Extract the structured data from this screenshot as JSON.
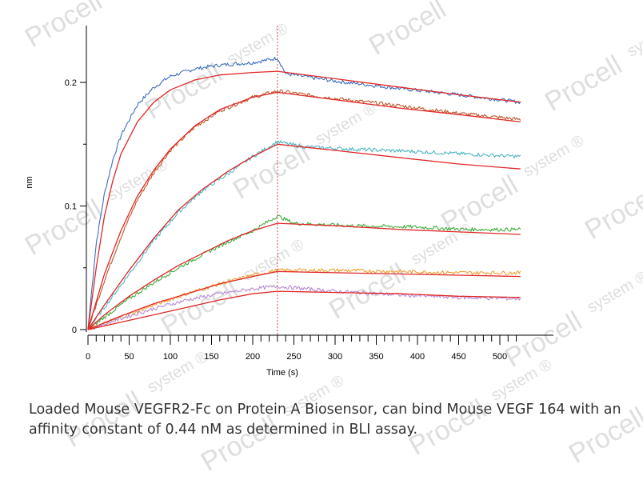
{
  "chart_data": {
    "type": "line",
    "title": "",
    "xlabel": "Time (s)",
    "ylabel": "nm",
    "xlim": [
      0,
      530
    ],
    "ylim": [
      -0.005,
      0.245
    ],
    "x_ticks": [
      0,
      50,
      100,
      150,
      200,
      250,
      300,
      350,
      400,
      450,
      500
    ],
    "y_ticks": [
      0,
      0.1,
      0.2
    ],
    "y_tick_labels": [
      "0",
      "0.1",
      "0.2"
    ],
    "grid": false,
    "dissociation_start_s": 230,
    "series": [
      {
        "role": "measured",
        "color": "#3b6fbf",
        "points": [
          [
            0,
            0
          ],
          [
            10,
            0.07
          ],
          [
            20,
            0.11
          ],
          [
            30,
            0.137
          ],
          [
            40,
            0.157
          ],
          [
            60,
            0.182
          ],
          [
            80,
            0.196
          ],
          [
            100,
            0.205
          ],
          [
            130,
            0.211
          ],
          [
            160,
            0.214
          ],
          [
            200,
            0.216
          ],
          [
            225,
            0.219
          ],
          [
            230,
            0.22
          ],
          [
            240,
            0.207
          ],
          [
            300,
            0.201
          ],
          [
            380,
            0.195
          ],
          [
            450,
            0.19
          ],
          [
            525,
            0.184
          ]
        ]
      },
      {
        "role": "measured",
        "color": "#c0562a",
        "points": [
          [
            0,
            0
          ],
          [
            20,
            0.04
          ],
          [
            40,
            0.075
          ],
          [
            60,
            0.105
          ],
          [
            80,
            0.127
          ],
          [
            100,
            0.145
          ],
          [
            130,
            0.164
          ],
          [
            160,
            0.177
          ],
          [
            200,
            0.188
          ],
          [
            230,
            0.193
          ],
          [
            300,
            0.187
          ],
          [
            380,
            0.181
          ],
          [
            450,
            0.175
          ],
          [
            525,
            0.17
          ]
        ]
      },
      {
        "role": "measured",
        "color": "#4eb6c4",
        "points": [
          [
            0,
            0
          ],
          [
            20,
            0.018
          ],
          [
            50,
            0.045
          ],
          [
            80,
            0.072
          ],
          [
            110,
            0.095
          ],
          [
            140,
            0.113
          ],
          [
            170,
            0.126
          ],
          [
            200,
            0.14
          ],
          [
            230,
            0.152
          ],
          [
            260,
            0.148
          ],
          [
            320,
            0.146
          ],
          [
            400,
            0.144
          ],
          [
            460,
            0.142
          ],
          [
            525,
            0.14
          ]
        ]
      },
      {
        "role": "measured",
        "color": "#3fae3f",
        "points": [
          [
            0,
            0
          ],
          [
            20,
            0.01
          ],
          [
            50,
            0.025
          ],
          [
            80,
            0.038
          ],
          [
            110,
            0.05
          ],
          [
            140,
            0.061
          ],
          [
            170,
            0.071
          ],
          [
            200,
            0.08
          ],
          [
            230,
            0.092
          ],
          [
            250,
            0.086
          ],
          [
            320,
            0.084
          ],
          [
            400,
            0.083
          ],
          [
            460,
            0.081
          ],
          [
            525,
            0.081
          ]
        ]
      },
      {
        "role": "measured",
        "color": "#f0a030",
        "points": [
          [
            0,
            0
          ],
          [
            40,
            0.01
          ],
          [
            80,
            0.02
          ],
          [
            120,
            0.029
          ],
          [
            160,
            0.037
          ],
          [
            200,
            0.044
          ],
          [
            230,
            0.048
          ],
          [
            300,
            0.048
          ],
          [
            380,
            0.047
          ],
          [
            450,
            0.046
          ],
          [
            525,
            0.046
          ]
        ]
      },
      {
        "role": "measured",
        "color": "#b58ad6",
        "points": [
          [
            0,
            0
          ],
          [
            40,
            0.009
          ],
          [
            80,
            0.017
          ],
          [
            120,
            0.024
          ],
          [
            160,
            0.029
          ],
          [
            200,
            0.033
          ],
          [
            230,
            0.035
          ],
          [
            300,
            0.031
          ],
          [
            380,
            0.028
          ],
          [
            450,
            0.026
          ],
          [
            525,
            0.025
          ]
        ]
      },
      {
        "role": "fit",
        "color": "#e02828",
        "points": [
          [
            0,
            0
          ],
          [
            10,
            0.05
          ],
          [
            20,
            0.092
          ],
          [
            30,
            0.12
          ],
          [
            40,
            0.142
          ],
          [
            60,
            0.168
          ],
          [
            80,
            0.184
          ],
          [
            100,
            0.194
          ],
          [
            130,
            0.202
          ],
          [
            160,
            0.206
          ],
          [
            200,
            0.208
          ],
          [
            230,
            0.209
          ],
          [
            300,
            0.203
          ],
          [
            380,
            0.196
          ],
          [
            450,
            0.19
          ],
          [
            525,
            0.184
          ]
        ]
      },
      {
        "role": "fit",
        "color": "#e02828",
        "points": [
          [
            0,
            0
          ],
          [
            20,
            0.045
          ],
          [
            40,
            0.08
          ],
          [
            60,
            0.108
          ],
          [
            80,
            0.129
          ],
          [
            100,
            0.146
          ],
          [
            130,
            0.165
          ],
          [
            160,
            0.178
          ],
          [
            200,
            0.188
          ],
          [
            230,
            0.192
          ],
          [
            300,
            0.186
          ],
          [
            380,
            0.179
          ],
          [
            450,
            0.174
          ],
          [
            525,
            0.168
          ]
        ]
      },
      {
        "role": "fit",
        "color": "#e02828",
        "points": [
          [
            0,
            0
          ],
          [
            20,
            0.02
          ],
          [
            50,
            0.048
          ],
          [
            80,
            0.074
          ],
          [
            110,
            0.097
          ],
          [
            140,
            0.114
          ],
          [
            170,
            0.128
          ],
          [
            200,
            0.14
          ],
          [
            230,
            0.15
          ],
          [
            300,
            0.145
          ],
          [
            380,
            0.139
          ],
          [
            450,
            0.134
          ],
          [
            525,
            0.13
          ]
        ]
      },
      {
        "role": "fit",
        "color": "#e02828",
        "points": [
          [
            0,
            0
          ],
          [
            20,
            0.012
          ],
          [
            50,
            0.027
          ],
          [
            80,
            0.04
          ],
          [
            110,
            0.052
          ],
          [
            140,
            0.062
          ],
          [
            170,
            0.072
          ],
          [
            200,
            0.08
          ],
          [
            230,
            0.086
          ],
          [
            300,
            0.084
          ],
          [
            380,
            0.081
          ],
          [
            450,
            0.079
          ],
          [
            525,
            0.077
          ]
        ]
      },
      {
        "role": "fit",
        "color": "#e02828",
        "points": [
          [
            0,
            0
          ],
          [
            40,
            0.011
          ],
          [
            80,
            0.021
          ],
          [
            120,
            0.029
          ],
          [
            160,
            0.037
          ],
          [
            200,
            0.043
          ],
          [
            230,
            0.047
          ],
          [
            300,
            0.046
          ],
          [
            380,
            0.045
          ],
          [
            450,
            0.044
          ],
          [
            525,
            0.043
          ]
        ]
      },
      {
        "role": "fit",
        "color": "#e02828",
        "points": [
          [
            0,
            0
          ],
          [
            40,
            0.006
          ],
          [
            80,
            0.012
          ],
          [
            120,
            0.018
          ],
          [
            160,
            0.024
          ],
          [
            200,
            0.029
          ],
          [
            230,
            0.031
          ],
          [
            300,
            0.03
          ],
          [
            380,
            0.029
          ],
          [
            450,
            0.027
          ],
          [
            525,
            0.026
          ]
        ]
      }
    ]
  },
  "caption": "Loaded Mouse VEGFR2-Fc on Protein A Biosensor, can bind Mouse VEGF 164 with an affinity constant of 0.44 nM as determined in BLI assay.",
  "watermark": {
    "brand": "Procell",
    "sub": "system",
    "mark": "®",
    "color": "#dedede"
  }
}
